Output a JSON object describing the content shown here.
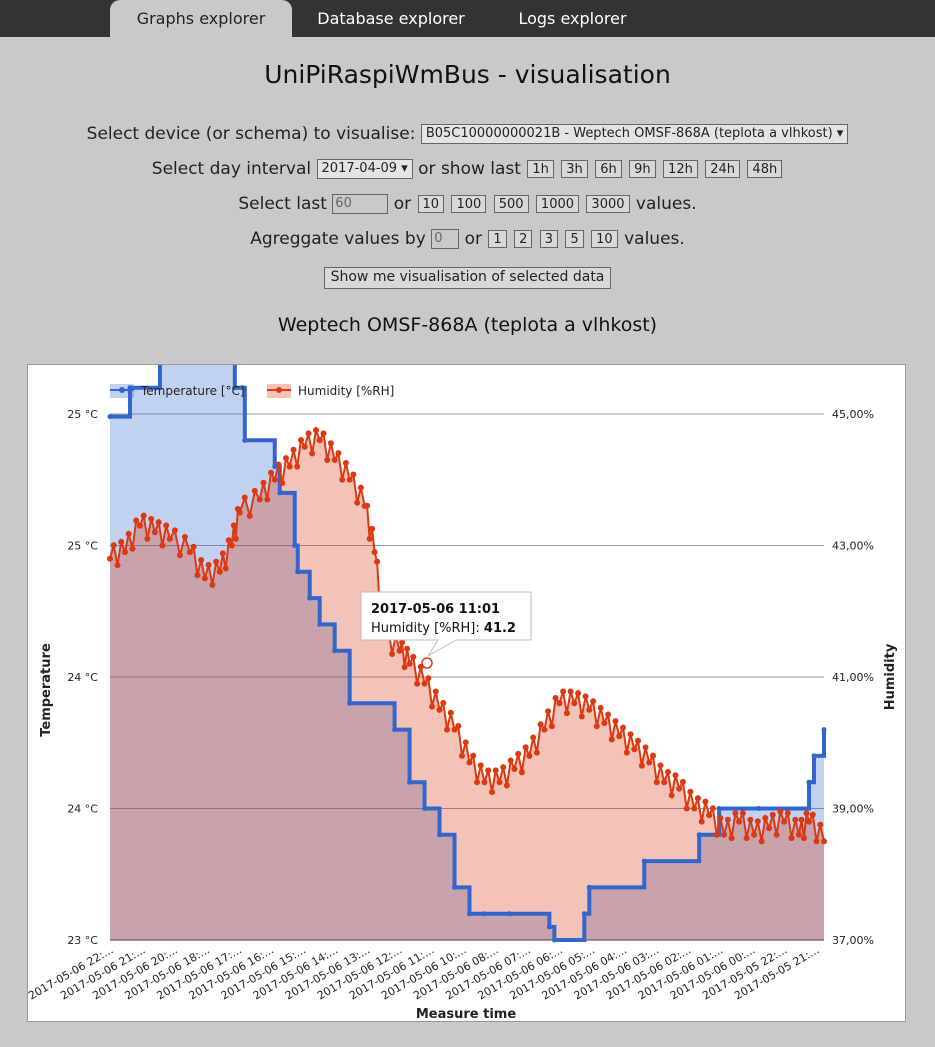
{
  "nav": {
    "tabs": [
      {
        "label": "Graphs explorer",
        "active": true
      },
      {
        "label": "Database explorer",
        "active": false
      },
      {
        "label": "Logs explorer",
        "active": false
      }
    ]
  },
  "page": {
    "title": "UniPiRaspiWmBus - visualisation"
  },
  "form": {
    "device_label": "Select device (or schema) to visualise:",
    "device_value": "B05C10000000021B - Weptech OMSF-868A (teplota a vlhkost) ▾",
    "day_label": "Select day interval",
    "day_value": "2017-04-09 ▾",
    "show_last_label": "or show last",
    "hour_buttons": [
      "1h",
      "3h",
      "6h",
      "9h",
      "12h",
      "24h",
      "48h"
    ],
    "last_label": "Select last",
    "last_value": "60",
    "or_label": "or",
    "value_buttons": [
      "10",
      "100",
      "500",
      "1000",
      "3000"
    ],
    "values_suffix": "values.",
    "aggregate_label": "Agreggate values by",
    "aggregate_value": "0",
    "aggregate_buttons": [
      "1",
      "2",
      "3",
      "5",
      "10"
    ],
    "submit_label": "Show me visualisation of selected data"
  },
  "chart_title": "Weptech OMSF-868A (teplota a vlhkost)",
  "colors": {
    "temperature": "#3366cc",
    "humidity": "#dc3912",
    "background": "#c9c9c9",
    "nav": "#333333"
  },
  "chart_data": {
    "type": "line",
    "xlabel": "Measure time",
    "ylabel_left": "Temperature",
    "ylabel_right": "Humidity",
    "legend": [
      {
        "name": "Temperature [°C]",
        "color": "#3366cc"
      },
      {
        "name": "Humidity [%RH]",
        "color": "#dc3912"
      }
    ],
    "legend_position": "top-left",
    "x_tick_labels": [
      "2017-05-06 22:...",
      "2017-05-06 21:...",
      "2017-05-06 20:...",
      "2017-05-06 18:...",
      "2017-05-06 17:...",
      "2017-05-06 16:...",
      "2017-05-06 15:...",
      "2017-05-06 14:...",
      "2017-05-06 13:...",
      "2017-05-06 12:...",
      "2017-05-06 11:...",
      "2017-05-06 10:...",
      "2017-05-06 08:...",
      "2017-05-06 07:...",
      "2017-05-06 06:...",
      "2017-05-06 05:...",
      "2017-05-06 04:...",
      "2017-05-06 03:...",
      "2017-05-06 02:...",
      "2017-05-06 01:...",
      "2017-05-06 00:...",
      "2017-05-05 22:...",
      "2017-05-05 21:..."
    ],
    "left_axis": {
      "ticks": [
        "23 °C",
        "24 °C",
        "24 °C",
        "25 °C",
        "25 °C"
      ],
      "range": [
        23,
        25
      ]
    },
    "right_axis": {
      "ticks": [
        "37,00%",
        "39,00%",
        "41,00%",
        "43,00%",
        "45,00%"
      ],
      "range": [
        37,
        45
      ]
    },
    "grid": true,
    "temperature": [
      [
        0,
        24.99
      ],
      [
        20,
        25.1
      ],
      [
        50,
        25.2
      ],
      [
        85,
        25.3
      ],
      [
        105,
        25.2
      ],
      [
        125,
        25.1
      ],
      [
        135,
        24.9
      ],
      [
        165,
        24.8
      ],
      [
        170,
        24.7
      ],
      [
        185,
        24.5
      ],
      [
        188,
        24.4
      ],
      [
        200,
        24.3
      ],
      [
        210,
        24.2
      ],
      [
        225,
        24.1
      ],
      [
        240,
        23.9
      ],
      [
        285,
        23.8
      ],
      [
        300,
        23.6
      ],
      [
        315,
        23.5
      ],
      [
        330,
        23.4
      ],
      [
        345,
        23.2
      ],
      [
        360,
        23.1
      ],
      [
        375,
        23.1
      ],
      [
        400,
        23.1
      ],
      [
        440,
        23.05
      ],
      [
        445,
        23.0
      ],
      [
        475,
        23.1
      ],
      [
        480,
        23.2
      ],
      [
        535,
        23.3
      ],
      [
        590,
        23.4
      ],
      [
        610,
        23.5
      ],
      [
        650,
        23.5
      ],
      [
        700,
        23.6
      ],
      [
        705,
        23.7
      ],
      [
        715,
        23.8
      ]
    ],
    "humidity": [
      [
        0,
        42.8
      ],
      [
        15,
        42.9
      ],
      [
        30,
        43.3
      ],
      [
        45,
        43.2
      ],
      [
        60,
        43.1
      ],
      [
        80,
        42.9
      ],
      [
        95,
        42.5
      ],
      [
        110,
        42.6
      ],
      [
        122,
        43.0
      ],
      [
        130,
        43.5
      ],
      [
        150,
        43.7
      ],
      [
        165,
        44.0
      ],
      [
        180,
        44.2
      ],
      [
        195,
        44.5
      ],
      [
        210,
        44.6
      ],
      [
        225,
        44.3
      ],
      [
        240,
        44.0
      ],
      [
        255,
        43.6
      ],
      [
        265,
        42.9
      ],
      [
        275,
        41.6
      ],
      [
        290,
        41.4
      ],
      [
        300,
        41.2
      ],
      [
        315,
        40.9
      ],
      [
        330,
        40.5
      ],
      [
        345,
        40.2
      ],
      [
        360,
        39.7
      ],
      [
        375,
        39.4
      ],
      [
        390,
        39.4
      ],
      [
        405,
        39.6
      ],
      [
        420,
        39.8
      ],
      [
        435,
        40.2
      ],
      [
        450,
        40.6
      ],
      [
        465,
        40.6
      ],
      [
        480,
        40.5
      ],
      [
        495,
        40.3
      ],
      [
        510,
        40.1
      ],
      [
        525,
        39.9
      ],
      [
        540,
        39.7
      ],
      [
        555,
        39.4
      ],
      [
        570,
        39.3
      ],
      [
        585,
        39.0
      ],
      [
        600,
        38.9
      ],
      [
        615,
        38.6
      ],
      [
        630,
        38.8
      ],
      [
        645,
        38.6
      ],
      [
        660,
        38.7
      ],
      [
        675,
        38.8
      ],
      [
        690,
        38.6
      ],
      [
        700,
        38.8
      ],
      [
        715,
        38.5
      ]
    ],
    "tooltip": {
      "title": "2017-05-06 11:01",
      "series": "Humidity [%RH]:",
      "value": "41.2"
    }
  }
}
